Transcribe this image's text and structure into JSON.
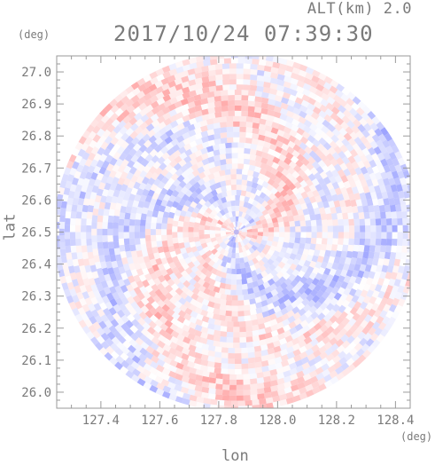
{
  "header": {
    "altitude_label": "ALT(km) 2.0",
    "timestamp": "2017/10/24 07:39:30"
  },
  "chart_data": {
    "type": "heatmap",
    "title": "2017/10/24 07:39:30",
    "subtitle": "ALT(km) 2.0",
    "xlabel": "lon",
    "ylabel": "lat",
    "x_unit": "(deg)",
    "y_unit": "(deg)",
    "xlim": [
      127.25,
      128.45
    ],
    "ylim": [
      25.95,
      27.05
    ],
    "x_ticks": [
      127.4,
      127.6,
      127.8,
      128.0,
      128.2,
      128.4
    ],
    "x_tick_labels": [
      "127.4",
      "127.6",
      "127.8",
      "128.0",
      "128.2",
      "128.4"
    ],
    "y_ticks": [
      26.0,
      26.1,
      26.2,
      26.3,
      26.4,
      26.5,
      26.6,
      26.7,
      26.8,
      26.9,
      27.0
    ],
    "y_tick_labels": [
      "26.0",
      "26.1",
      "26.2",
      "26.3",
      "26.4",
      "26.5",
      "26.6",
      "26.7",
      "26.8",
      "26.9",
      "27.0"
    ],
    "radar_center": {
      "lon": 127.86,
      "lat": 26.5
    },
    "radar_radius_deg": {
      "lon": 0.62,
      "lat": 0.56
    },
    "colormap": {
      "negative": "#4a5cf0",
      "zero": "#ffffff",
      "positive": "#f05050"
    },
    "grid": false
  }
}
